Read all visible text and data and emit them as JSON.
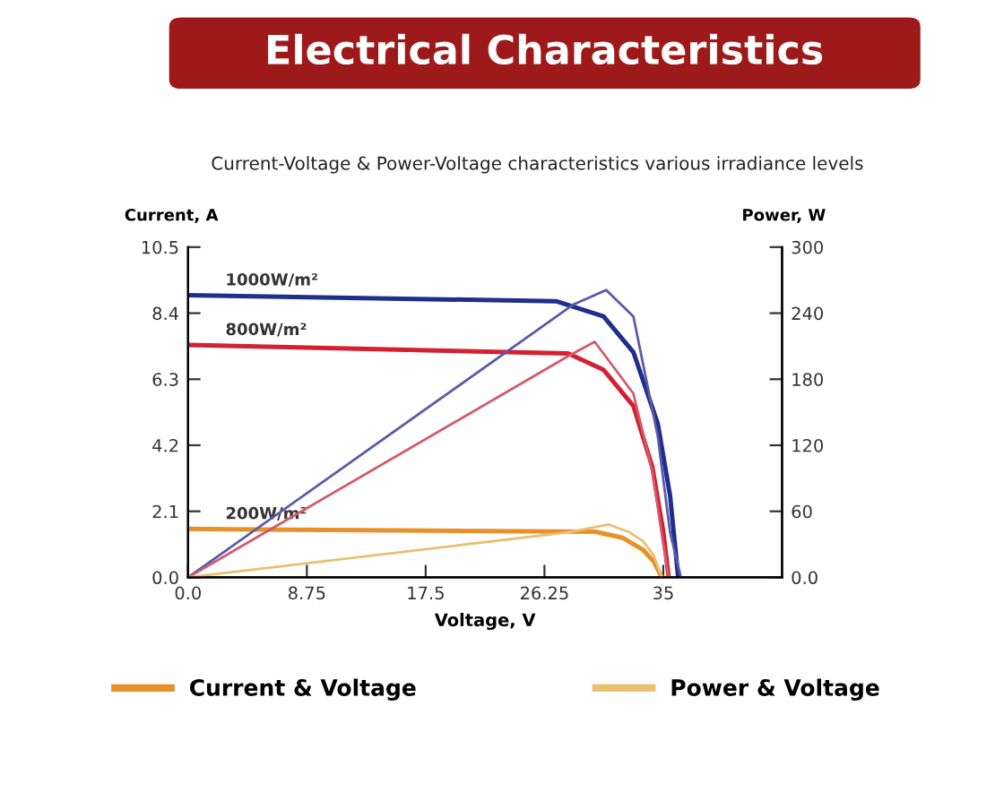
{
  "chart_data": {
    "type": "line",
    "title": "Electrical Characteristics",
    "subtitle": "Current-Voltage & Power-Voltage characteristics various irradiance levels",
    "xlabel": "Voltage, V",
    "ylabel": "Current, A",
    "y2label": "Power, W",
    "xlim": [
      0,
      43.75
    ],
    "xticks": [
      {
        "value": 0,
        "label": "0.0"
      },
      8.75,
      17.5,
      26.25,
      35
    ],
    "ylim": [
      0,
      10.5
    ],
    "yticks": [
      {
        "value": 0,
        "label": "0.0"
      },
      2.1,
      4.2,
      6.3,
      8.4,
      10.5
    ],
    "y2lim": [
      0,
      300
    ],
    "y2ticks": [
      {
        "value": 0,
        "label": "0.0"
      },
      60,
      120,
      180,
      240,
      300
    ],
    "grid": false,
    "legend": "bottom",
    "annotations": [
      "1000W/m²",
      "800W/m²",
      "200W/m²"
    ],
    "series": [
      {
        "color": "#1f2f8c",
        "x": [
          0,
          27.1,
          30.6,
          32.8,
          34.6,
          35.5,
          36.1
        ],
        "values": [
          8.97,
          8.78,
          8.3,
          7.16,
          4.88,
          2.6,
          0
        ]
      },
      {
        "color": "#d42030",
        "x": [
          0,
          28,
          30.6,
          32.8,
          34.2,
          35,
          35.4
        ],
        "values": [
          7.39,
          7.12,
          6.6,
          5.45,
          3.5,
          1.45,
          0
        ]
      },
      {
        "name": "Current & Voltage",
        "color": "#e8902a",
        "x": [
          0,
          30,
          32,
          33.5,
          34.3,
          34.9
        ],
        "values": [
          1.54,
          1.45,
          1.26,
          0.88,
          0.5,
          0
        ]
      },
      {
        "color": "#5a5aa8",
        "axis": "y2",
        "x": [
          0,
          28.4,
          30.8,
          32.8,
          34.6,
          35.5,
          36.3
        ],
        "values": [
          0,
          248,
          261,
          237,
          128,
          41,
          0
        ]
      },
      {
        "color": "#d45a6a",
        "axis": "y2",
        "x": [
          0,
          28,
          29.95,
          32.8,
          34.2,
          35,
          35.4
        ],
        "values": [
          0,
          201,
          214,
          167,
          96,
          30,
          0
        ]
      },
      {
        "name": "Power & Voltage",
        "color": "#e8c070",
        "axis": "y2",
        "x": [
          0,
          28,
          31,
          32.5,
          33.5,
          34.3,
          34.9
        ],
        "values": [
          0,
          41,
          48,
          41,
          33,
          20,
          0
        ]
      }
    ]
  }
}
